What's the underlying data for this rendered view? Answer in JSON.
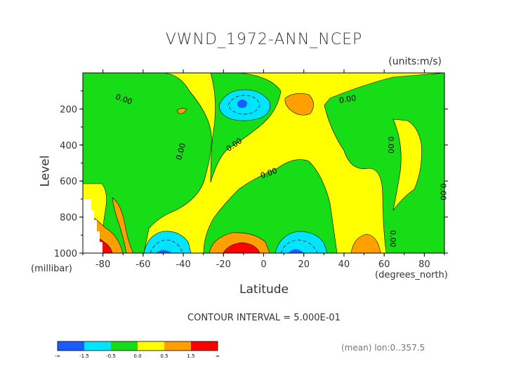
{
  "chart_data": {
    "type": "heatmap",
    "title": "VWND_1972-ANN_NCEP",
    "units": "(units:m/s)",
    "ylabel": "Level",
    "yunit": "(millibar)",
    "xlabel": "Latitude",
    "xunit": "(degrees_north)",
    "xlim": [
      -90,
      90
    ],
    "ylim": [
      1000,
      0
    ],
    "xticks": [
      "-80",
      "-60",
      "-40",
      "-20",
      "0",
      "20",
      "40",
      "60",
      "80"
    ],
    "yticks": [
      "200",
      "400",
      "600",
      "800",
      "1000"
    ],
    "contour_interval": "CONTOUR INTERVAL = 5.000E-01",
    "contour_labels": [
      "0.00",
      "0.00",
      "0.00",
      "0.00",
      "0.00",
      "0.00",
      "0.00",
      "0.00",
      "0.00"
    ],
    "regions": [
      {
        "name": "negative jet core near 10S 200mb",
        "x": -12,
        "y": 200,
        "level": -1.5
      },
      {
        "name": "southern surface trough near 50S",
        "x": -50,
        "y": 1000,
        "level": -1.0
      },
      {
        "name": "surface negative near 15N",
        "x": 15,
        "y": 1000,
        "level": -1.5
      },
      {
        "name": "surface positive near 12S",
        "x": -12,
        "y": 1000,
        "level": 1.5
      },
      {
        "name": "antarctic surface positive",
        "x": -85,
        "y": 950,
        "level": 1.5
      },
      {
        "name": "upper positive near 20N",
        "x": 20,
        "y": 150,
        "level": 0.5
      },
      {
        "name": "surface positive near 60N",
        "x": 60,
        "y": 950,
        "level": 0.5
      }
    ],
    "colorbar": {
      "labels": [
        "-∞",
        "-1.5",
        "-0.5",
        "0.0",
        "0.5",
        "1.5",
        "∞"
      ],
      "colors": [
        "#1a5cff",
        "#00e5ff",
        "#16dd16",
        "#ffff00",
        "#ff9f00",
        "#ff0000"
      ]
    },
    "footnote": "(mean) lon:0..357.5"
  }
}
